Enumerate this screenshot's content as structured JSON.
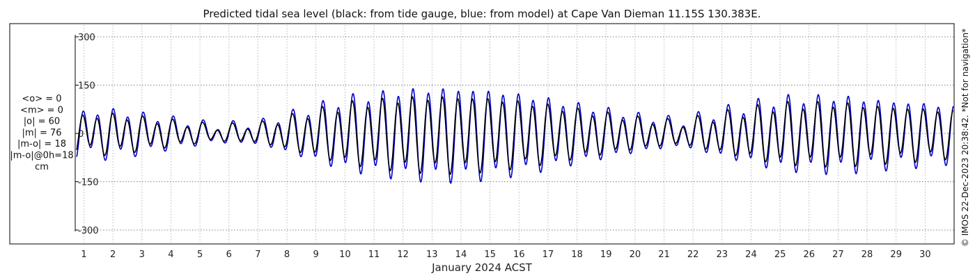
{
  "chart_data": {
    "type": "line",
    "title": "Predicted tidal sea level (black: from tide gauge, blue: from model) at Cape Van Dieman 11.15S 130.383E.",
    "xlabel": "January 2024 ACST",
    "ylabel": "",
    "ylim": [
      -300,
      300
    ],
    "xlim": [
      0.7,
      31
    ],
    "y_ticks": [
      300,
      150,
      0,
      -150,
      -300
    ],
    "x_ticks": [
      1,
      2,
      3,
      4,
      5,
      6,
      7,
      8,
      9,
      10,
      11,
      12,
      13,
      14,
      15,
      16,
      17,
      18,
      19,
      20,
      21,
      22,
      23,
      24,
      25,
      26,
      27,
      28,
      29,
      30
    ],
    "grid": true,
    "legend": "none",
    "series_models": [
      {
        "name": "from tide gauge",
        "color": "#000000",
        "stroke_width": 1.6,
        "model": "approximate semidiurnal tide, value(t) = d(t)*cos(2*pi*(t-0.43)/0.5175) + s(t)*cos(2*pi*(t-0.15)/1.0), t in days of January 2024",
        "semidiurnal_amplitude_envelope": [
          [
            0.7,
            50
          ],
          [
            2,
            55
          ],
          [
            3.5,
            40
          ],
          [
            5.5,
            20
          ],
          [
            7,
            25
          ],
          [
            8.5,
            55
          ],
          [
            10,
            85
          ],
          [
            12,
            105
          ],
          [
            13.5,
            110
          ],
          [
            15,
            105
          ],
          [
            16.5,
            90
          ],
          [
            18,
            70
          ],
          [
            20,
            45
          ],
          [
            21.5,
            30
          ],
          [
            23,
            55
          ],
          [
            25,
            85
          ],
          [
            27,
            90
          ],
          [
            28.5,
            80
          ],
          [
            30.5,
            70
          ],
          [
            31,
            65
          ]
        ],
        "diurnal_amplitude_envelope": [
          [
            0.7,
            18
          ],
          [
            4,
            12
          ],
          [
            7,
            10
          ],
          [
            10,
            18
          ],
          [
            13,
            18
          ],
          [
            16,
            15
          ],
          [
            20,
            10
          ],
          [
            24,
            18
          ],
          [
            27,
            18
          ],
          [
            31,
            14
          ]
        ]
      },
      {
        "name": "from model",
        "color": "#0000cc",
        "stroke_width": 1.6,
        "model": "same tidal shape scaled by 1.22 with a small phase shift",
        "amplitude_scale": 1.22,
        "phase_shift_days": 0.02
      }
    ],
    "stats": [
      "<o> = 0",
      "<m> = 0",
      "|o| = 60",
      "|m| = 76",
      "|m-o| = 18",
      "|m-o|@0h=18",
      "cm"
    ],
    "copyright": "© IMOS 22-Dec-2023 20:38:42. *Not for navigation*"
  },
  "colors": {
    "grid": "#555555",
    "axis": "#000000"
  }
}
